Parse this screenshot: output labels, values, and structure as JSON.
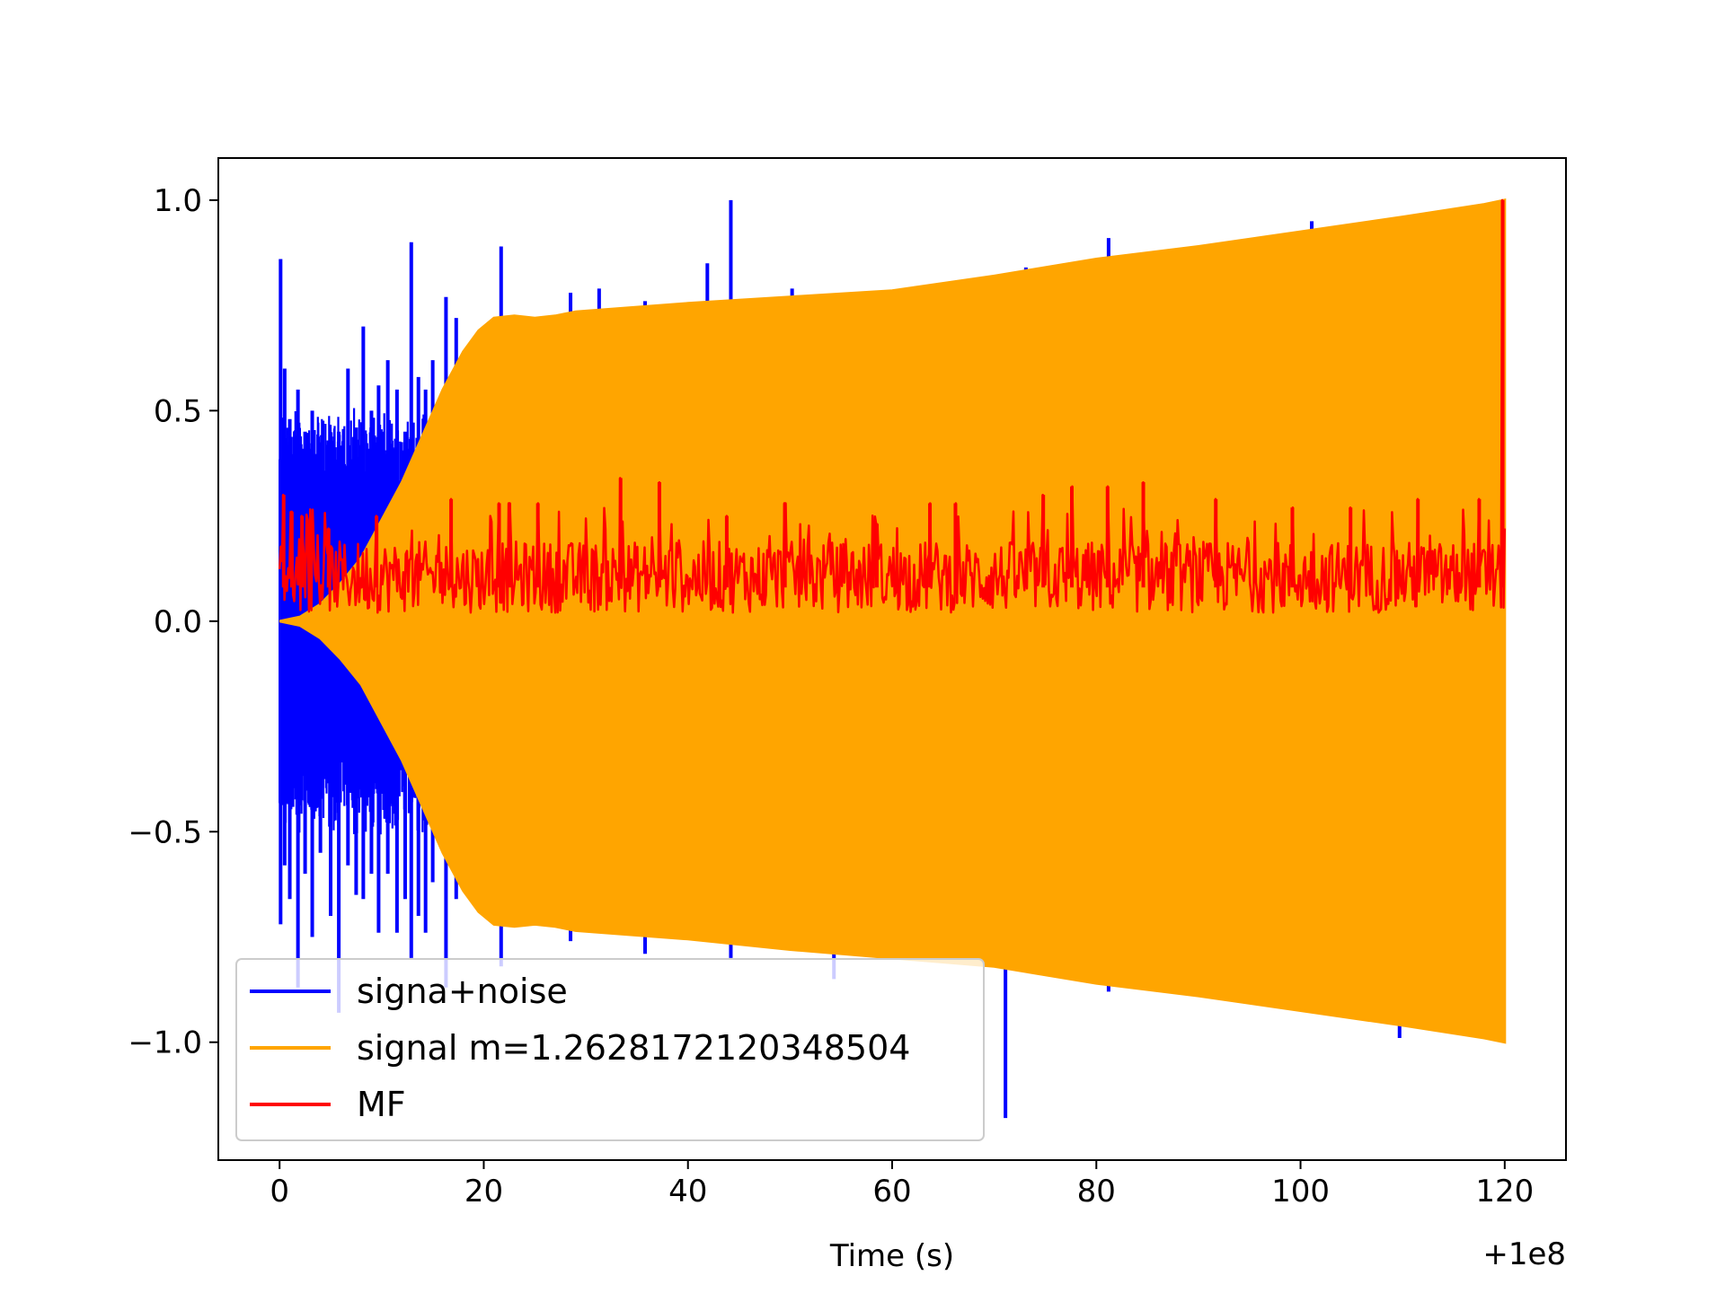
{
  "chart_data": {
    "type": "line",
    "title": "",
    "xlabel": "Time (s)",
    "ylabel": "",
    "x_offset_label": "+1e8",
    "xlim": [
      -6,
      126
    ],
    "ylim": [
      -1.28,
      1.1
    ],
    "xticks": [
      0,
      20,
      40,
      60,
      80,
      100,
      120
    ],
    "xtick_labels": [
      "0",
      "20",
      "40",
      "60",
      "80",
      "100",
      "120"
    ],
    "yticks": [
      1.0,
      0.5,
      0.0,
      -0.5,
      -1.0
    ],
    "ytick_labels": [
      "1.0",
      "0.5",
      "0.0",
      "−0.5",
      "−1.0"
    ],
    "grid": false,
    "legend_position": "lower-left",
    "series": [
      {
        "name": "signa+noise",
        "color": "#0000ff",
        "spikes": [
          [
            0.1,
            0.86,
            -0.72
          ],
          [
            0.5,
            0.6,
            -0.58
          ],
          [
            1.0,
            0.48,
            -0.66
          ],
          [
            1.8,
            0.55,
            -0.87
          ],
          [
            2.5,
            0.45,
            -0.6
          ],
          [
            3.2,
            0.5,
            -0.75
          ],
          [
            4.0,
            0.4,
            -0.55
          ],
          [
            5.0,
            0.35,
            -0.7
          ],
          [
            5.8,
            0.45,
            -0.93
          ],
          [
            6.7,
            0.6,
            -0.58
          ],
          [
            7.5,
            0.46,
            -0.65
          ],
          [
            8.2,
            0.7,
            -0.66
          ],
          [
            9.0,
            0.5,
            -0.6
          ],
          [
            9.7,
            0.56,
            -0.74
          ],
          [
            10.6,
            0.62,
            -0.6
          ],
          [
            11.5,
            0.55,
            -0.74
          ],
          [
            12.3,
            0.45,
            -0.66
          ],
          [
            12.9,
            0.9,
            -0.8
          ],
          [
            13.6,
            0.58,
            -0.7
          ],
          [
            14.3,
            0.55,
            -0.74
          ],
          [
            15.0,
            0.62,
            -0.62
          ],
          [
            16.3,
            0.77,
            -0.87
          ],
          [
            17.3,
            0.72,
            -0.66
          ],
          [
            21.7,
            0.89,
            -0.82
          ],
          [
            28.5,
            0.78,
            -0.76
          ],
          [
            31.3,
            0.79,
            -0.74
          ],
          [
            35.8,
            0.76,
            -0.79
          ],
          [
            41.9,
            0.85,
            -0.74
          ],
          [
            44.2,
            1.0,
            -0.8
          ],
          [
            50.2,
            0.79,
            -0.78
          ],
          [
            54.3,
            0.77,
            -0.85
          ],
          [
            60.5,
            0.76,
            -0.79
          ],
          [
            71.1,
            0.82,
            -1.18
          ],
          [
            73.1,
            0.84,
            -0.82
          ],
          [
            76.9,
            0.8,
            -0.85
          ],
          [
            81.2,
            0.91,
            -0.88
          ],
          [
            101.1,
            0.95,
            -0.9
          ],
          [
            109.7,
            0.92,
            -0.99
          ],
          [
            119.8,
            0.98,
            -0.98
          ]
        ]
      },
      {
        "name": "signal m=1.2628172120348504",
        "color": "#ffa500",
        "envelope_upper": [
          [
            0,
            0.0
          ],
          [
            2,
            0.01
          ],
          [
            4,
            0.04
          ],
          [
            6,
            0.09
          ],
          [
            8,
            0.15
          ],
          [
            10,
            0.24
          ],
          [
            12,
            0.33
          ],
          [
            14,
            0.44
          ],
          [
            16,
            0.55
          ],
          [
            18,
            0.64
          ],
          [
            19.5,
            0.69
          ],
          [
            21,
            0.72
          ],
          [
            23,
            0.725
          ],
          [
            25,
            0.72
          ],
          [
            27,
            0.725
          ],
          [
            29,
            0.735
          ],
          [
            40,
            0.755
          ],
          [
            50,
            0.77
          ],
          [
            60,
            0.785
          ],
          [
            70,
            0.82
          ],
          [
            80,
            0.86
          ],
          [
            90,
            0.89
          ],
          [
            100,
            0.925
          ],
          [
            110,
            0.96
          ],
          [
            118,
            0.99
          ],
          [
            120,
            1.0
          ]
        ],
        "envelope_lower": [
          [
            0,
            0.0
          ],
          [
            2,
            -0.01
          ],
          [
            4,
            -0.04
          ],
          [
            6,
            -0.09
          ],
          [
            8,
            -0.15
          ],
          [
            10,
            -0.24
          ],
          [
            12,
            -0.33
          ],
          [
            14,
            -0.44
          ],
          [
            16,
            -0.55
          ],
          [
            18,
            -0.64
          ],
          [
            19.5,
            -0.69
          ],
          [
            21,
            -0.72
          ],
          [
            23,
            -0.725
          ],
          [
            25,
            -0.72
          ],
          [
            27,
            -0.725
          ],
          [
            29,
            -0.735
          ],
          [
            40,
            -0.755
          ],
          [
            50,
            -0.78
          ],
          [
            60,
            -0.8
          ],
          [
            70,
            -0.82
          ],
          [
            80,
            -0.86
          ],
          [
            90,
            -0.89
          ],
          [
            100,
            -0.925
          ],
          [
            110,
            -0.96
          ],
          [
            118,
            -0.99
          ],
          [
            120,
            -1.0
          ]
        ]
      },
      {
        "name": "MF",
        "color": "#ff0000",
        "baseline": 0.08,
        "band": [
          0.02,
          0.19
        ],
        "peaks": [
          [
            0.4,
            0.3
          ],
          [
            1.2,
            0.26
          ],
          [
            2.2,
            0.25
          ],
          [
            4.8,
            0.22
          ],
          [
            9.5,
            0.25
          ],
          [
            16.8,
            0.29
          ],
          [
            21.5,
            0.28
          ],
          [
            22.5,
            0.28
          ],
          [
            25.3,
            0.28
          ],
          [
            33.4,
            0.34
          ],
          [
            37.2,
            0.33
          ],
          [
            43.8,
            0.25
          ],
          [
            49.5,
            0.28
          ],
          [
            58.5,
            0.23
          ],
          [
            63.7,
            0.28
          ],
          [
            66.2,
            0.28
          ],
          [
            74.8,
            0.3
          ],
          [
            77.6,
            0.32
          ],
          [
            81.1,
            0.32
          ],
          [
            84.6,
            0.33
          ],
          [
            91.7,
            0.29
          ],
          [
            99.2,
            0.27
          ],
          [
            104.9,
            0.27
          ],
          [
            111.5,
            0.29
          ],
          [
            117.5,
            0.29
          ],
          [
            119.8,
            1.0
          ]
        ]
      }
    ]
  }
}
